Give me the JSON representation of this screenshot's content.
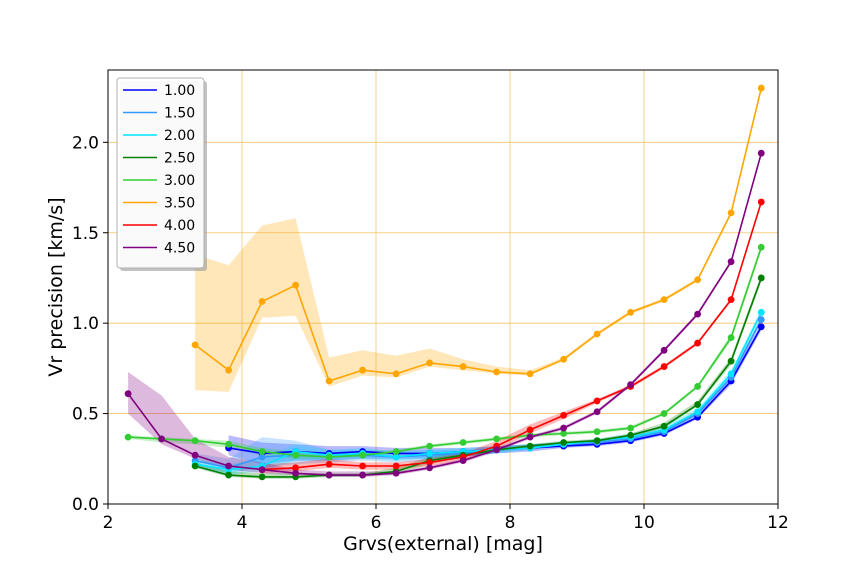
{
  "chart_data": {
    "type": "line",
    "xlabel": "Grvs(external) [mag]",
    "ylabel": "Vr precision [km/s]",
    "xlim": [
      2,
      12
    ],
    "ylim": [
      0,
      2.4
    ],
    "xticks": [
      "2",
      "4",
      "6",
      "8",
      "10",
      "12"
    ],
    "yticks": [
      "0.0",
      "0.5",
      "1.0",
      "1.5",
      "2.0"
    ],
    "grid": true,
    "grid_color": "#f5c56b",
    "legend_position": "upper-left",
    "series": [
      {
        "name": "1.00",
        "color": "#0000ff",
        "x": [
          3.8,
          4.3,
          4.8,
          5.3,
          5.8,
          6.3,
          6.8,
          7.3,
          7.8,
          8.3,
          8.8,
          9.3,
          9.8,
          10.3,
          10.8,
          11.3,
          11.75
        ],
        "y": [
          0.31,
          0.28,
          0.29,
          0.28,
          0.29,
          0.28,
          0.28,
          0.29,
          0.3,
          0.31,
          0.32,
          0.33,
          0.35,
          0.39,
          0.48,
          0.68,
          0.98
        ],
        "lower": [
          0.27,
          0.22,
          0.24,
          0.24,
          0.25,
          0.25,
          0.25,
          0.26,
          0.28,
          0.29,
          0.31,
          0.32,
          0.34,
          0.38,
          0.47,
          0.66,
          0.96
        ],
        "upper": [
          0.38,
          0.34,
          0.33,
          0.32,
          0.32,
          0.31,
          0.31,
          0.31,
          0.32,
          0.33,
          0.34,
          0.35,
          0.37,
          0.41,
          0.5,
          0.7,
          1.0
        ]
      },
      {
        "name": "1.50",
        "color": "#3399ff",
        "x": [
          3.3,
          3.8,
          4.3,
          4.8,
          5.3,
          5.8,
          6.3,
          6.8,
          7.3,
          7.8,
          8.3,
          8.8,
          9.3,
          9.8,
          10.3,
          10.8,
          11.3,
          11.75
        ],
        "y": [
          0.24,
          0.2,
          0.26,
          0.27,
          0.26,
          0.27,
          0.26,
          0.27,
          0.28,
          0.3,
          0.31,
          0.33,
          0.34,
          0.36,
          0.4,
          0.5,
          0.7,
          1.02
        ],
        "lower": [
          0.21,
          0.17,
          0.2,
          0.22,
          0.23,
          0.24,
          0.23,
          0.24,
          0.26,
          0.28,
          0.3,
          0.32,
          0.33,
          0.35,
          0.39,
          0.49,
          0.68,
          1.0
        ],
        "upper": [
          0.28,
          0.25,
          0.37,
          0.35,
          0.3,
          0.3,
          0.29,
          0.3,
          0.3,
          0.32,
          0.33,
          0.34,
          0.35,
          0.38,
          0.42,
          0.52,
          0.72,
          1.04
        ]
      },
      {
        "name": "2.00",
        "color": "#00e5ff",
        "x": [
          3.3,
          3.8,
          4.3,
          4.8,
          5.3,
          5.8,
          6.3,
          6.8,
          7.3,
          7.8,
          8.3,
          8.8,
          9.3,
          9.8,
          10.3,
          10.8,
          11.3,
          11.75
        ],
        "y": [
          0.22,
          0.19,
          0.21,
          0.29,
          0.27,
          0.28,
          0.26,
          0.28,
          0.29,
          0.3,
          0.31,
          0.33,
          0.35,
          0.37,
          0.41,
          0.51,
          0.72,
          1.06
        ],
        "lower": [
          0.2,
          0.16,
          0.18,
          0.24,
          0.24,
          0.25,
          0.24,
          0.25,
          0.27,
          0.28,
          0.3,
          0.32,
          0.34,
          0.36,
          0.4,
          0.5,
          0.7,
          1.04
        ],
        "upper": [
          0.25,
          0.22,
          0.25,
          0.33,
          0.3,
          0.31,
          0.29,
          0.3,
          0.31,
          0.32,
          0.33,
          0.34,
          0.36,
          0.39,
          0.43,
          0.53,
          0.74,
          1.08
        ]
      },
      {
        "name": "2.50",
        "color": "#008000",
        "x": [
          3.3,
          3.8,
          4.3,
          4.8,
          5.3,
          5.8,
          6.3,
          6.8,
          7.3,
          7.8,
          8.3,
          8.8,
          9.3,
          9.8,
          10.3,
          10.8,
          11.3,
          11.75
        ],
        "y": [
          0.21,
          0.16,
          0.15,
          0.15,
          0.16,
          0.16,
          0.18,
          0.24,
          0.27,
          0.3,
          0.32,
          0.34,
          0.35,
          0.38,
          0.43,
          0.55,
          0.79,
          1.25
        ],
        "lower": [
          0.2,
          0.15,
          0.14,
          0.14,
          0.15,
          0.15,
          0.17,
          0.22,
          0.26,
          0.29,
          0.31,
          0.33,
          0.34,
          0.37,
          0.42,
          0.54,
          0.77,
          1.23
        ],
        "upper": [
          0.23,
          0.18,
          0.17,
          0.17,
          0.17,
          0.17,
          0.2,
          0.26,
          0.29,
          0.31,
          0.33,
          0.35,
          0.36,
          0.39,
          0.45,
          0.57,
          0.81,
          1.27
        ]
      },
      {
        "name": "3.00",
        "color": "#33cc33",
        "x": [
          2.3,
          2.8,
          3.3,
          3.8,
          4.3,
          4.8,
          5.3,
          5.8,
          6.3,
          6.8,
          7.3,
          7.8,
          8.3,
          8.8,
          9.3,
          9.8,
          10.3,
          10.8,
          11.3,
          11.75
        ],
        "y": [
          0.37,
          0.36,
          0.35,
          0.33,
          0.29,
          0.27,
          0.26,
          0.27,
          0.29,
          0.32,
          0.34,
          0.36,
          0.38,
          0.39,
          0.4,
          0.42,
          0.5,
          0.65,
          0.92,
          1.42
        ],
        "lower": [
          0.36,
          0.34,
          0.33,
          0.31,
          0.27,
          0.25,
          0.25,
          0.26,
          0.28,
          0.31,
          0.33,
          0.35,
          0.37,
          0.38,
          0.39,
          0.41,
          0.49,
          0.64,
          0.9,
          1.4
        ],
        "upper": [
          0.38,
          0.37,
          0.36,
          0.35,
          0.31,
          0.29,
          0.28,
          0.29,
          0.3,
          0.33,
          0.35,
          0.37,
          0.39,
          0.4,
          0.41,
          0.43,
          0.51,
          0.66,
          0.94,
          1.44
        ]
      },
      {
        "name": "3.50",
        "color": "#ffa500",
        "x": [
          3.3,
          3.8,
          4.3,
          4.8,
          5.3,
          5.8,
          6.3,
          6.8,
          7.3,
          7.8,
          8.3,
          8.8,
          9.3,
          9.8,
          10.3,
          10.8,
          11.3,
          11.75
        ],
        "y": [
          0.88,
          0.74,
          1.12,
          1.21,
          0.68,
          0.74,
          0.72,
          0.78,
          0.76,
          0.73,
          0.72,
          0.8,
          0.94,
          1.06,
          1.13,
          1.24,
          1.61,
          2.3
        ],
        "lower": [
          0.63,
          0.62,
          1.03,
          1.04,
          0.65,
          0.71,
          0.7,
          0.76,
          0.74,
          0.72,
          0.71,
          0.79,
          0.93,
          1.05,
          1.12,
          1.23,
          1.6,
          2.29
        ],
        "upper": [
          1.38,
          1.32,
          1.54,
          1.58,
          0.81,
          0.85,
          0.82,
          0.86,
          0.8,
          0.76,
          0.74,
          0.81,
          0.95,
          1.07,
          1.14,
          1.25,
          1.62,
          2.31
        ]
      },
      {
        "name": "4.00",
        "color": "#ff0000",
        "x": [
          4.3,
          4.8,
          5.3,
          5.8,
          6.3,
          6.8,
          7.3,
          7.8,
          8.3,
          8.8,
          9.3,
          9.8,
          10.3,
          10.8,
          11.3,
          11.75
        ],
        "y": [
          0.19,
          0.2,
          0.22,
          0.21,
          0.21,
          0.23,
          0.26,
          0.32,
          0.41,
          0.49,
          0.57,
          0.65,
          0.76,
          0.89,
          1.13,
          1.67
        ],
        "lower": [
          0.17,
          0.18,
          0.2,
          0.19,
          0.19,
          0.21,
          0.24,
          0.3,
          0.39,
          0.47,
          0.56,
          0.64,
          0.75,
          0.88,
          1.12,
          1.66
        ],
        "upper": [
          0.22,
          0.23,
          0.25,
          0.23,
          0.23,
          0.25,
          0.28,
          0.35,
          0.44,
          0.51,
          0.58,
          0.66,
          0.77,
          0.9,
          1.14,
          1.68
        ]
      },
      {
        "name": "4.50",
        "color": "#800080",
        "x": [
          2.3,
          2.8,
          3.3,
          3.8,
          4.3,
          4.8,
          5.3,
          5.8,
          6.3,
          6.8,
          7.3,
          7.8,
          8.3,
          8.8,
          9.3,
          9.8,
          10.3,
          10.8,
          11.3,
          11.75
        ],
        "y": [
          0.61,
          0.36,
          0.27,
          0.21,
          0.19,
          0.17,
          0.16,
          0.16,
          0.17,
          0.2,
          0.24,
          0.3,
          0.37,
          0.42,
          0.51,
          0.66,
          0.85,
          1.05,
          1.34,
          1.94
        ],
        "lower": [
          0.5,
          0.33,
          0.25,
          0.19,
          0.17,
          0.16,
          0.15,
          0.15,
          0.16,
          0.19,
          0.23,
          0.29,
          0.36,
          0.41,
          0.5,
          0.65,
          0.84,
          1.04,
          1.33,
          1.93
        ],
        "upper": [
          0.73,
          0.6,
          0.36,
          0.26,
          0.23,
          0.19,
          0.18,
          0.18,
          0.18,
          0.21,
          0.25,
          0.31,
          0.38,
          0.43,
          0.52,
          0.67,
          0.86,
          1.06,
          1.35,
          1.95
        ]
      }
    ]
  }
}
